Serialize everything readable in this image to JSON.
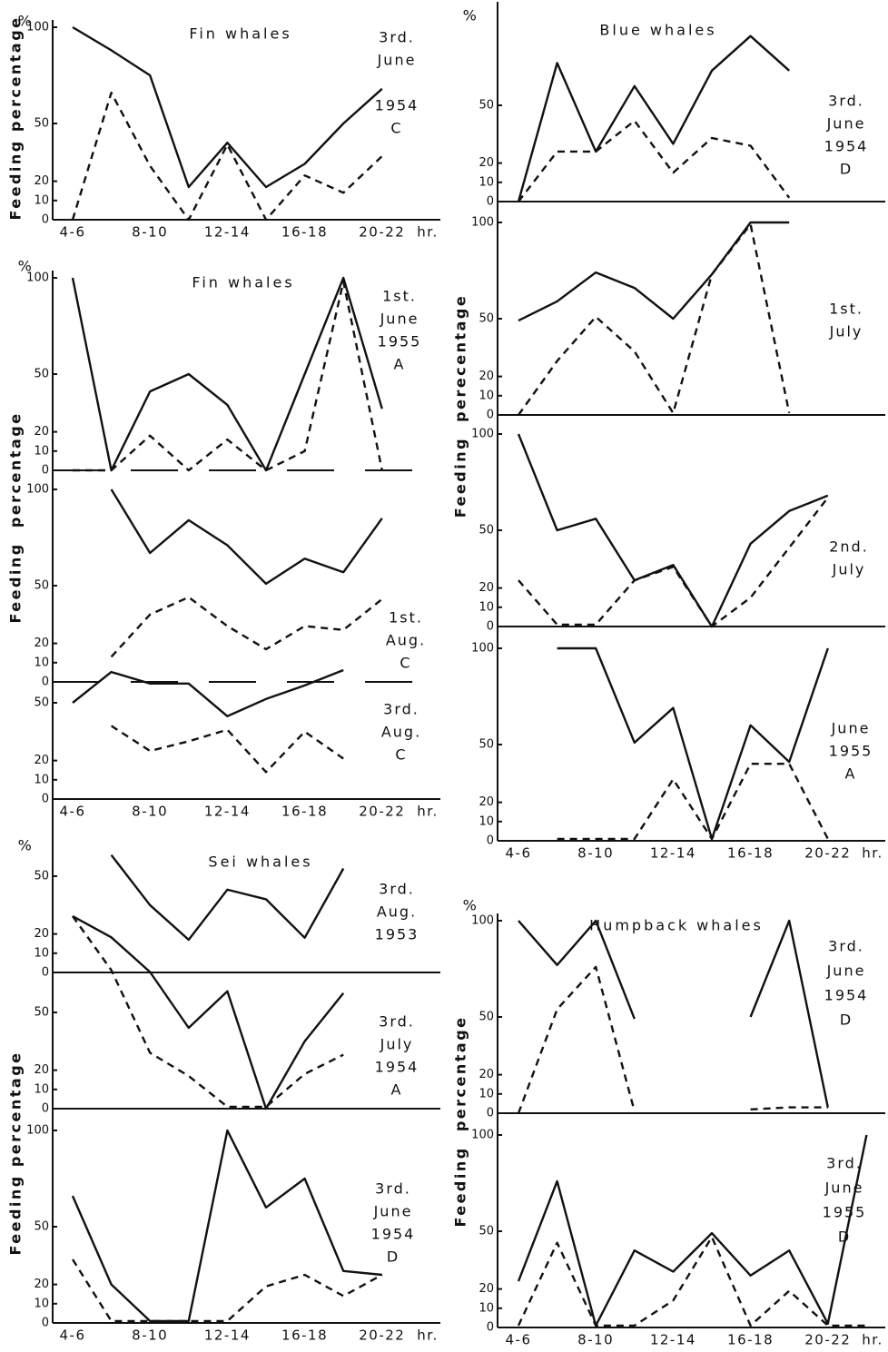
{
  "chart_data": [
    {
      "type": "line",
      "title": "Fin whales",
      "unit": "%",
      "ylabel": "Feeding percentage",
      "xlabel": "hr.",
      "categories": [
        "4-6",
        null,
        "8-10",
        null,
        "12-14",
        null,
        "16-18",
        null,
        "20-22"
      ],
      "panels": [
        {
          "label": [
            "3rd.",
            "June",
            "",
            "1954",
            "C"
          ],
          "ylim": [
            0,
            100
          ],
          "yticks": [
            0,
            10,
            20,
            50,
            100
          ],
          "series": [
            {
              "style": "solid",
              "color": "#111",
              "values": [
                100,
                88,
                75,
                17,
                40,
                17,
                29,
                50,
                68
              ]
            },
            {
              "style": "dashed",
              "color": "#111",
              "values": [
                0,
                66,
                28,
                0,
                39,
                0,
                23,
                14,
                33
              ]
            }
          ]
        }
      ]
    },
    {
      "type": "line",
      "title": "Fin whales",
      "unit": "%",
      "ylabel": "Feeding  percentage",
      "xlabel": "hr.",
      "categories": [
        "4-6",
        null,
        "8-10",
        null,
        "12-14",
        null,
        "16-18",
        null,
        "20-22"
      ],
      "panels": [
        {
          "label": [
            "1st.",
            "June",
            "1955",
            "A"
          ],
          "ylim": [
            0,
            100
          ],
          "yticks": [
            0,
            10,
            20,
            50,
            100
          ],
          "series": [
            {
              "style": "solid",
              "color": "#111",
              "values": [
                100,
                0,
                41,
                50,
                34,
                0,
                50,
                100,
                32
              ]
            },
            {
              "style": "dashed",
              "color": "#111",
              "values": [
                0,
                0,
                18,
                0,
                16,
                0,
                10,
                98,
                0
              ]
            }
          ]
        },
        {
          "label": [
            "1st.",
            "Aug.",
            "C"
          ],
          "ylim": [
            0,
            100
          ],
          "yticks": [
            0,
            10,
            20,
            50,
            100
          ],
          "series": [
            {
              "style": "solid",
              "color": "#111",
              "values": [
                null,
                100,
                67,
                84,
                71,
                51,
                64,
                57,
                85
              ]
            },
            {
              "style": "dashed",
              "color": "#111",
              "values": [
                null,
                13,
                35,
                44,
                29,
                17,
                29,
                27,
                43
              ]
            }
          ]
        },
        {
          "label": [
            "3rd.",
            "Aug.",
            "C"
          ],
          "ylim": [
            0,
            100
          ],
          "yticks": [
            0,
            10,
            20,
            50
          ],
          "series": [
            {
              "style": "solid",
              "color": "#111",
              "values": [
                50,
                66,
                60,
                60,
                43,
                52,
                59,
                67,
                null
              ]
            },
            {
              "style": "dashed",
              "color": "#111",
              "values": [
                null,
                38,
                25,
                30,
                36,
                14,
                35,
                21,
                null
              ]
            }
          ]
        }
      ]
    },
    {
      "type": "line",
      "title": "Sei whales",
      "unit": "%",
      "ylabel": "Feeding percentage",
      "xlabel": "hr.",
      "categories": [
        "4-6",
        null,
        "8-10",
        null,
        "12-14",
        null,
        "16-18",
        null,
        "20-22"
      ],
      "panels": [
        {
          "label": [
            "3rd.",
            "Aug.",
            "1953"
          ],
          "ylim": [
            0,
            100
          ],
          "yticks": [
            0,
            10,
            20,
            50
          ],
          "series": [
            {
              "style": "solid",
              "color": "#111",
              "values": [
                null,
                61,
                35,
                17,
                43,
                38,
                18,
                54,
                null
              ]
            }
          ]
        },
        {
          "label": [
            "3rd.",
            "July",
            "1954",
            "A"
          ],
          "ylim": [
            0,
            100
          ],
          "yticks": [
            0,
            10,
            20,
            50
          ],
          "series": [
            {
              "style": "solid",
              "color": "#111",
              "values": [
                100,
                89,
                71,
                42,
                61,
                0,
                35,
                60,
                null
              ]
            },
            {
              "style": "dashed",
              "color": "#111",
              "values": [
                100,
                72,
                29,
                17,
                1,
                1,
                18,
                28,
                null
              ]
            }
          ]
        },
        {
          "label": [
            "3rd.",
            "June",
            "1954",
            "D"
          ],
          "ylim": [
            0,
            100
          ],
          "yticks": [
            0,
            10,
            20,
            50,
            100
          ],
          "series": [
            {
              "style": "solid",
              "color": "#111",
              "values": [
                66,
                20,
                1,
                1,
                100,
                60,
                75,
                27,
                25
              ]
            },
            {
              "style": "dashed",
              "color": "#111",
              "values": [
                33,
                1,
                1,
                1,
                1,
                19,
                25,
                14,
                25
              ]
            }
          ]
        }
      ]
    },
    {
      "type": "line",
      "title": "Blue whales",
      "unit": "%",
      "ylabel": "Feeding  perecentage",
      "xlabel": "hr.",
      "categories": [
        "4-6",
        null,
        "8-10",
        null,
        "12-14",
        null,
        "16-18",
        null,
        "20-22"
      ],
      "panels": [
        {
          "label": [
            "3rd.",
            "June",
            "1954",
            "D"
          ],
          "ylim": [
            0,
            100
          ],
          "yticks": [
            0,
            10,
            20,
            50
          ],
          "series": [
            {
              "style": "solid",
              "color": "#111",
              "values": [
                0,
                72,
                26,
                60,
                30,
                68,
                86,
                68,
                null
              ]
            },
            {
              "style": "dashed",
              "color": "#111",
              "values": [
                0,
                26,
                26,
                42,
                15,
                33,
                29,
                2,
                null
              ]
            }
          ]
        },
        {
          "label": [
            "1st.",
            "July"
          ],
          "ylim": [
            0,
            100
          ],
          "yticks": [
            0,
            10,
            20,
            50,
            100
          ],
          "series": [
            {
              "style": "solid",
              "color": "#111",
              "values": [
                49,
                59,
                74,
                66,
                50,
                73,
                100,
                100,
                null
              ]
            },
            {
              "style": "dashed",
              "color": "#111",
              "values": [
                0,
                28,
                51,
                33,
                1,
                73,
                99,
                1,
                null
              ]
            }
          ]
        },
        {
          "label": [
            "2nd.",
            "July"
          ],
          "ylim": [
            0,
            100
          ],
          "yticks": [
            0,
            10,
            20,
            50,
            100
          ],
          "series": [
            {
              "style": "solid",
              "color": "#111",
              "values": [
                100,
                50,
                56,
                24,
                32,
                0,
                43,
                60,
                68
              ]
            },
            {
              "style": "dashed",
              "color": "#111",
              "values": [
                24,
                1,
                1,
                24,
                31,
                0,
                15,
                41,
                67
              ]
            }
          ]
        },
        {
          "label": [
            "June",
            "1955",
            "A"
          ],
          "ylim": [
            0,
            100
          ],
          "yticks": [
            0,
            10,
            20,
            50,
            100
          ],
          "series": [
            {
              "style": "solid",
              "color": "#111",
              "values": [
                null,
                100,
                100,
                51,
                69,
                1,
                60,
                41,
                100
              ]
            },
            {
              "style": "dashed",
              "color": "#111",
              "values": [
                null,
                1,
                1,
                1,
                32,
                1,
                40,
                40,
                1
              ]
            }
          ]
        }
      ]
    },
    {
      "type": "line",
      "title": "Humpback whales",
      "unit": "%",
      "ylabel": "Feeding  percentage",
      "xlabel": "hr.",
      "categories": [
        "4-6",
        null,
        "8-10",
        null,
        "12-14",
        null,
        "16-18",
        null,
        "20-22",
        null
      ],
      "panels": [
        {
          "label": [
            "3rd.",
            "June",
            "1954",
            "D"
          ],
          "ylim": [
            0,
            100
          ],
          "yticks": [
            0,
            10,
            20,
            50,
            100
          ],
          "series": [
            {
              "style": "solid",
              "color": "#111",
              "values": [
                100,
                77,
                100,
                49,
                null,
                null,
                50,
                100,
                3,
                null
              ]
            },
            {
              "style": "dashed",
              "color": "#111",
              "values": [
                0,
                54,
                76,
                1,
                null,
                null,
                2,
                3,
                3,
                null
              ]
            }
          ]
        },
        {
          "label": [
            "3rd.",
            "June",
            "1955",
            "D"
          ],
          "ylim": [
            0,
            100
          ],
          "yticks": [
            0,
            10,
            20,
            50,
            100
          ],
          "series": [
            {
              "style": "solid",
              "color": "#111",
              "values": [
                24,
                76,
                1,
                40,
                29,
                49,
                27,
                40,
                2,
                100
              ]
            },
            {
              "style": "dashed",
              "color": "#111",
              "values": [
                1,
                44,
                1,
                1,
                14,
                47,
                1,
                19,
                1,
                1
              ]
            }
          ]
        }
      ]
    }
  ]
}
